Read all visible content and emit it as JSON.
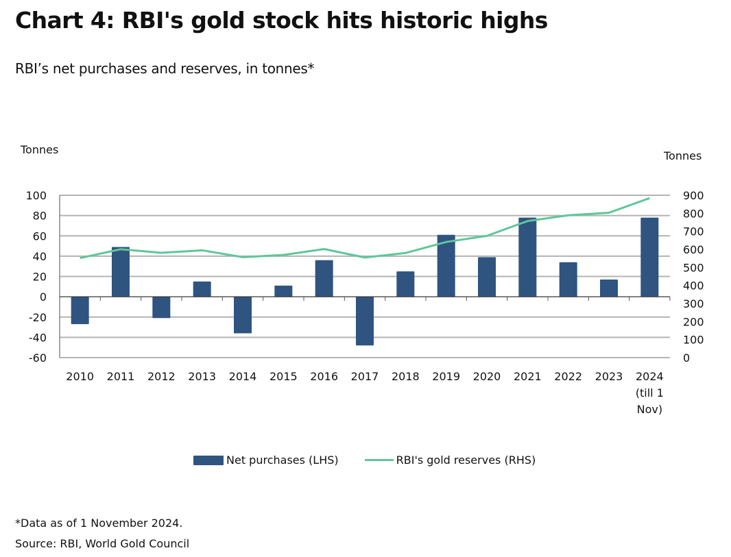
{
  "title": "Chart 4: RBI's gold stock hits historic highs",
  "subtitle": "RBI’s net purchases and reserves, in tonnes*",
  "footnotes": {
    "note": "*Data as of 1 November 2024.",
    "source": "Source: RBI, World Gold Council"
  },
  "colors": {
    "bars": "#2f5480",
    "line": "#5ec79a",
    "grid": "#b3b3b3",
    "axis": "#888888"
  },
  "chart_data": {
    "type": "bar+line",
    "title": "Chart 4: RBI's gold stock hits historic highs",
    "subtitle": "RBI’s net purchases and reserves, in tonnes*",
    "categories": [
      "2010",
      "2011",
      "2012",
      "2013",
      "2014",
      "2015",
      "2016",
      "2017",
      "2018",
      "2019",
      "2020",
      "2021",
      "2022",
      "2023",
      "2024 (till 1 Nov)"
    ],
    "category_label_lines": [
      [
        "2010"
      ],
      [
        "2011"
      ],
      [
        "2012"
      ],
      [
        "2013"
      ],
      [
        "2014"
      ],
      [
        "2015"
      ],
      [
        "2016"
      ],
      [
        "2017"
      ],
      [
        "2018"
      ],
      [
        "2019"
      ],
      [
        "2020"
      ],
      [
        "2021"
      ],
      [
        "2022"
      ],
      [
        "2023"
      ],
      [
        "2024",
        "(till 1",
        "Nov)"
      ]
    ],
    "series": [
      {
        "name": "Net purchases (LHS)",
        "type": "bar",
        "axis": "left",
        "values": [
          -27,
          49,
          -21,
          15,
          -36,
          11,
          36,
          -48,
          25,
          61,
          39,
          78,
          34,
          17,
          78
        ]
      },
      {
        "name": "RBI's gold reserves (RHS)",
        "type": "line",
        "axis": "right",
        "values": [
          552,
          601,
          581,
          595,
          557,
          569,
          602,
          555,
          580,
          641,
          675,
          757,
          789,
          803,
          884
        ]
      }
    ],
    "left_axis": {
      "label": "Tonnes",
      "ylim": [
        -60,
        100
      ],
      "ticks": [
        100,
        80,
        60,
        40,
        20,
        0,
        -20,
        -40,
        -60
      ]
    },
    "right_axis": {
      "label": "Tonnes",
      "ylim": [
        0,
        900
      ],
      "ticks": [
        900,
        800,
        700,
        600,
        500,
        400,
        300,
        200,
        100,
        0
      ]
    },
    "grid": true,
    "legend_position": "bottom"
  }
}
